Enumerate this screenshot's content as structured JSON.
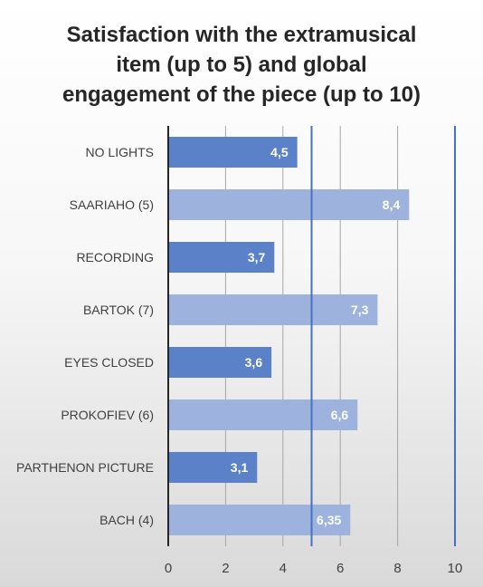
{
  "chart_data": {
    "type": "bar",
    "orientation": "horizontal",
    "title": "Satisfaction with the extramusical\nitem (up to 5) and global\nengagement of the piece (up to 10)",
    "categories": [
      "NO LIGHTS",
      "SAARIAHO (5)",
      "RECORDING",
      "BARTOK (7)",
      "EYES CLOSED",
      "PROKOFIEV (6)",
      "PARTHENON PICTURE",
      "BACH (4)"
    ],
    "values": [
      4.5,
      8.4,
      3.7,
      7.3,
      3.6,
      6.6,
      3.1,
      6.35
    ],
    "data_labels": [
      "4,5",
      "8,4",
      "3,7",
      "7,3",
      "3,6",
      "6,6",
      "3,1",
      "6,35"
    ],
    "bar_colors": [
      "#5b82c8",
      "#9db3dd",
      "#5b82c8",
      "#9db3dd",
      "#5b82c8",
      "#9db3dd",
      "#5b82c8",
      "#9db3dd"
    ],
    "xlim": [
      0,
      10
    ],
    "xticks": [
      0,
      2,
      4,
      6,
      8,
      10
    ],
    "reference_lines": [
      5,
      10
    ],
    "reference_line_color": "#4472c4",
    "grid": true
  }
}
